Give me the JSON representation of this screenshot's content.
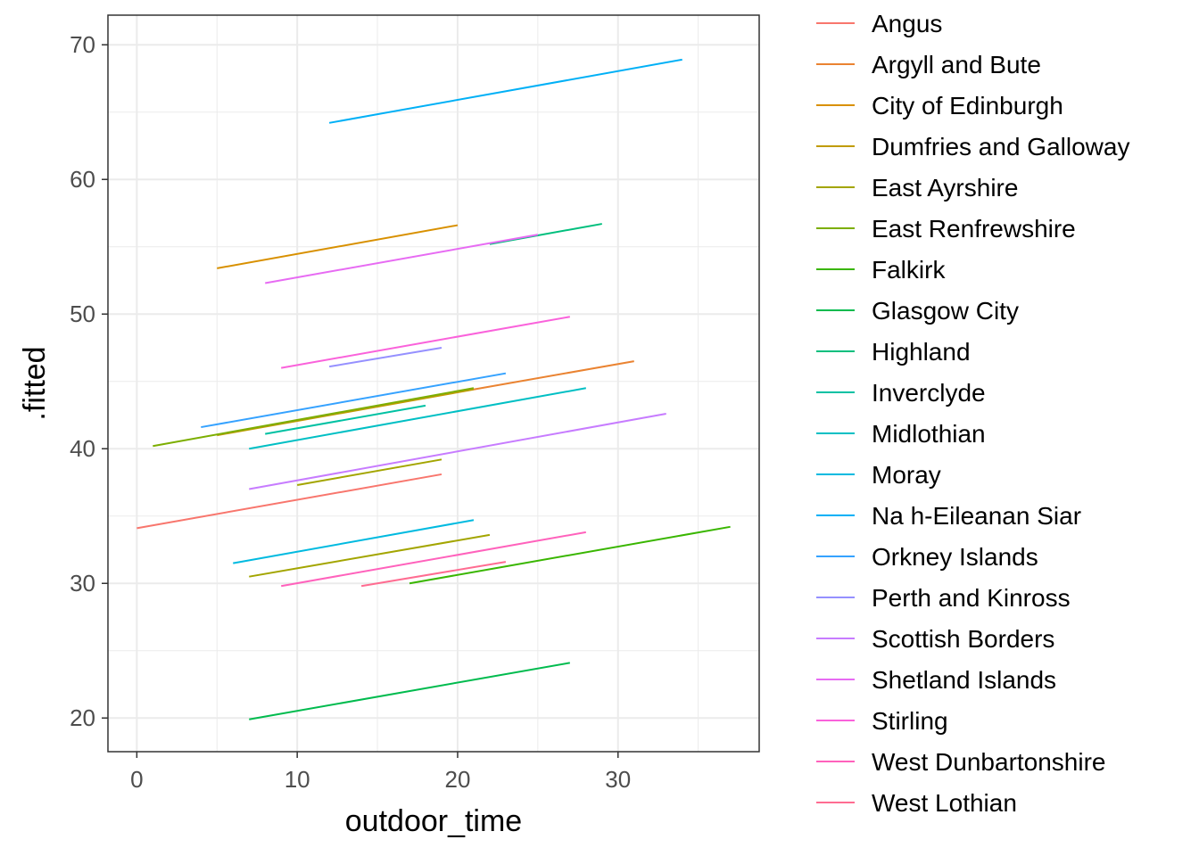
{
  "chart_data": {
    "type": "line",
    "title": "",
    "xlabel": "outdoor_time",
    "ylabel": ".fitted",
    "xlim": [
      -1.8,
      38.8
    ],
    "ylim": [
      17.5,
      72.2
    ],
    "x_ticks": [
      0,
      10,
      20,
      30
    ],
    "y_ticks": [
      20,
      30,
      40,
      50,
      60,
      70
    ],
    "x_tick_labels": [
      "0",
      "10",
      "20",
      "30"
    ],
    "y_tick_labels": [
      "20",
      "30",
      "40",
      "50",
      "60",
      "70"
    ],
    "grid": true,
    "legend_position": "right",
    "series": [
      {
        "name": "Angus",
        "color": "#F8766D",
        "x": [
          0,
          19
        ],
        "y": [
          34.1,
          38.1
        ]
      },
      {
        "name": "Argyll and Bute",
        "color": "#EA8331",
        "x": [
          21,
          31
        ],
        "y": [
          44.4,
          46.5
        ]
      },
      {
        "name": "City of Edinburgh",
        "color": "#D89000",
        "x": [
          5,
          20
        ],
        "y": [
          53.4,
          56.6
        ]
      },
      {
        "name": "Dumfries and Galloway",
        "color": "#C09B00",
        "x": [
          5,
          21
        ],
        "y": [
          41.0,
          44.4
        ]
      },
      {
        "name": "East Ayrshire",
        "color": "#A3A500",
        "x": [
          10,
          19
        ],
        "y": [
          37.3,
          39.2
        ]
      },
      {
        "name": "East Renfrewshire",
        "color": "#7CAE00",
        "x": [
          1,
          21
        ],
        "y": [
          40.2,
          44.5
        ]
      },
      {
        "name": "Falkirk",
        "color": "#39B600",
        "x": [
          17,
          37
        ],
        "y": [
          30.0,
          34.2
        ]
      },
      {
        "name": "Glasgow City",
        "color": "#00BB4E",
        "x": [
          7,
          27
        ],
        "y": [
          19.9,
          24.1
        ]
      },
      {
        "name": "Highland",
        "color": "#00BF7D",
        "x": [
          22,
          29
        ],
        "y": [
          55.2,
          56.7
        ]
      },
      {
        "name": "Inverclyde",
        "color": "#00C1A3",
        "x": [
          8,
          18
        ],
        "y": [
          41.1,
          43.2
        ]
      },
      {
        "name": "Midlothian",
        "color": "#00BFC4",
        "x": [
          7,
          28
        ],
        "y": [
          40.0,
          44.5
        ]
      },
      {
        "name": "Moray",
        "color": "#00BAE0",
        "x": [
          6,
          21
        ],
        "y": [
          31.5,
          34.7
        ]
      },
      {
        "name": "Na h-Eileanan Siar",
        "color": "#00B0F6",
        "x": [
          12,
          34
        ],
        "y": [
          64.2,
          68.9
        ]
      },
      {
        "name": "Orkney Islands",
        "color": "#35A2FF",
        "x": [
          4,
          23
        ],
        "y": [
          41.6,
          45.6
        ]
      },
      {
        "name": "Perth and Kinross",
        "color": "#9590FF",
        "x": [
          12,
          19
        ],
        "y": [
          46.1,
          47.5
        ]
      },
      {
        "name": "Scottish Borders",
        "color": "#C77CFF",
        "x": [
          7,
          33
        ],
        "y": [
          37.0,
          42.6
        ]
      },
      {
        "name": "Shetland Islands",
        "color": "#E76BF3",
        "x": [
          8,
          25
        ],
        "y": [
          52.3,
          55.9
        ]
      },
      {
        "name": "Stirling",
        "color": "#FA62DB",
        "x": [
          9,
          27
        ],
        "y": [
          46.0,
          49.8
        ]
      },
      {
        "name": "West Dunbartonshire",
        "color": "#FF62BC",
        "x": [
          9,
          28
        ],
        "y": [
          29.8,
          33.8
        ]
      },
      {
        "name": "West Lothian",
        "color": "#FF6C91",
        "x": [
          14,
          23
        ],
        "y": [
          29.8,
          31.6
        ]
      }
    ],
    "extra_segments": [
      {
        "color": "#A3A500",
        "x": [
          7,
          22
        ],
        "y": [
          30.5,
          33.6
        ]
      }
    ]
  }
}
